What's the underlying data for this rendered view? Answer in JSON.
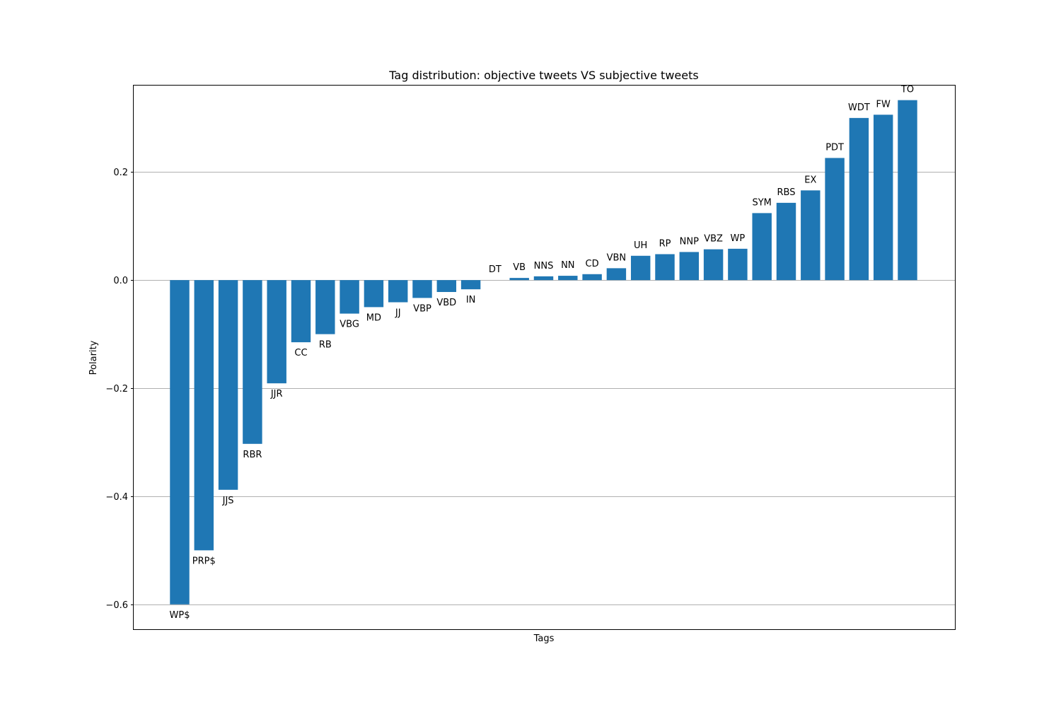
{
  "chart_data": {
    "type": "bar",
    "title": "Tag distribution: objective tweets VS subjective tweets",
    "xlabel": "Tags",
    "ylabel": "Polarity",
    "ylim": [
      -0.646,
      0.36
    ],
    "yticks": [
      0.2,
      0.0,
      -0.2,
      -0.4,
      -0.6
    ],
    "ytick_labels": [
      "0.2",
      "0.0",
      "−0.2",
      "−0.4",
      "−0.6"
    ],
    "grid": "horizontal",
    "bar_color": "#1f77b4",
    "categories": [
      "WP$",
      "PRP$",
      "JJS",
      "RBR",
      "JJR",
      "CC",
      "RB",
      "VBG",
      "MD",
      "JJ",
      "VBP",
      "VBD",
      "IN",
      "DT",
      "VB",
      "NNS",
      "NN",
      "CD",
      "VBN",
      "UH",
      "RP",
      "NNP",
      "VBZ",
      "WP",
      "SYM",
      "RBS",
      "EX",
      "PDT",
      "WDT",
      "FW",
      "TO"
    ],
    "values": [
      -0.6,
      -0.5,
      -0.388,
      -0.303,
      -0.191,
      -0.115,
      -0.1,
      -0.062,
      -0.05,
      -0.041,
      -0.033,
      -0.022,
      -0.017,
      0.0,
      0.004,
      0.007,
      0.008,
      0.011,
      0.022,
      0.045,
      0.048,
      0.052,
      0.057,
      0.058,
      0.124,
      0.143,
      0.166,
      0.226,
      0.3,
      0.306,
      0.333
    ]
  }
}
